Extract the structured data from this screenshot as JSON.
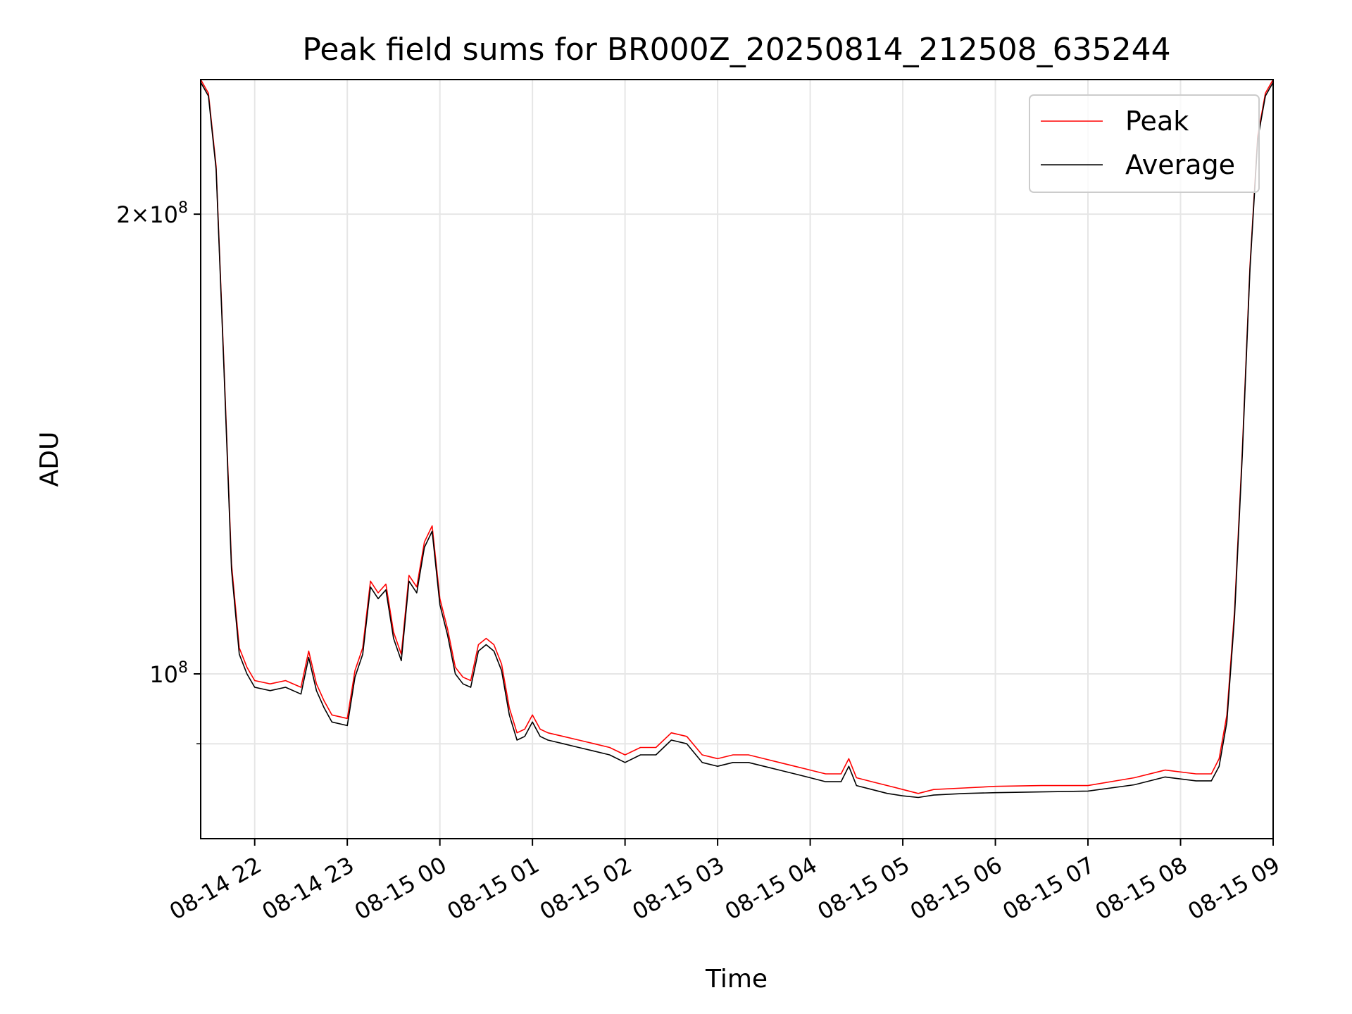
{
  "chart_data": {
    "type": "line",
    "title": "Peak field sums for BR000Z_20250814_212508_635244",
    "xlabel": "Time",
    "ylabel": "ADU",
    "y_scale": "log",
    "ylim": [
      78000000,
      245000000
    ],
    "xlim": [
      "2025-08-14 21:25",
      "2025-08-15 09:00"
    ],
    "x_ticks": [
      {
        "value": "2025-08-14 22:00",
        "label": "08-14 22"
      },
      {
        "value": "2025-08-14 23:00",
        "label": "08-14 23"
      },
      {
        "value": "2025-08-15 00:00",
        "label": "08-15 00"
      },
      {
        "value": "2025-08-15 01:00",
        "label": "08-15 01"
      },
      {
        "value": "2025-08-15 02:00",
        "label": "08-15 02"
      },
      {
        "value": "2025-08-15 03:00",
        "label": "08-15 03"
      },
      {
        "value": "2025-08-15 04:00",
        "label": "08-15 04"
      },
      {
        "value": "2025-08-15 05:00",
        "label": "08-15 05"
      },
      {
        "value": "2025-08-15 06:00",
        "label": "08-15 06"
      },
      {
        "value": "2025-08-15 07:00",
        "label": "08-15 07"
      },
      {
        "value": "2025-08-15 08:00",
        "label": "08-15 08"
      },
      {
        "value": "2025-08-15 09:00",
        "label": "08-15 09"
      }
    ],
    "y_ticks_major": [
      {
        "value": 100000000,
        "base": "10",
        "exp": "8",
        "mult": ""
      },
      {
        "value": 200000000,
        "base": "10",
        "exp": "8",
        "mult": "2×"
      }
    ],
    "y_ticks_minor": [
      90000000
    ],
    "grid": true,
    "legend": {
      "position": "top-right"
    },
    "series": [
      {
        "name": "Peak",
        "color": "#ff0000",
        "points": [
          [
            "2025-08-14 21:25",
            245000000
          ],
          [
            "2025-08-14 21:30",
            240000000
          ],
          [
            "2025-08-14 21:35",
            215000000
          ],
          [
            "2025-08-14 21:40",
            160000000
          ],
          [
            "2025-08-14 21:45",
            118000000
          ],
          [
            "2025-08-14 21:50",
            104000000
          ],
          [
            "2025-08-14 21:55",
            101000000
          ],
          [
            "2025-08-14 22:00",
            99000000
          ],
          [
            "2025-08-14 22:10",
            98500000
          ],
          [
            "2025-08-14 22:20",
            99000000
          ],
          [
            "2025-08-14 22:30",
            98000000
          ],
          [
            "2025-08-14 22:35",
            103500000
          ],
          [
            "2025-08-14 22:40",
            98500000
          ],
          [
            "2025-08-14 22:45",
            96000000
          ],
          [
            "2025-08-14 22:50",
            94000000
          ],
          [
            "2025-08-14 23:00",
            93500000
          ],
          [
            "2025-08-14 23:05",
            100500000
          ],
          [
            "2025-08-14 23:10",
            104000000
          ],
          [
            "2025-08-14 23:15",
            115000000
          ],
          [
            "2025-08-14 23:20",
            113000000
          ],
          [
            "2025-08-14 23:25",
            114500000
          ],
          [
            "2025-08-14 23:30",
            106500000
          ],
          [
            "2025-08-14 23:35",
            103000000
          ],
          [
            "2025-08-14 23:40",
            116000000
          ],
          [
            "2025-08-14 23:45",
            114000000
          ],
          [
            "2025-08-14 23:50",
            122000000
          ],
          [
            "2025-08-14 23:55",
            125000000
          ],
          [
            "2025-08-15 00:00",
            112000000
          ],
          [
            "2025-08-15 00:05",
            107000000
          ],
          [
            "2025-08-15 00:10",
            101000000
          ],
          [
            "2025-08-15 00:15",
            99500000
          ],
          [
            "2025-08-15 00:20",
            99000000
          ],
          [
            "2025-08-15 00:25",
            104500000
          ],
          [
            "2025-08-15 00:30",
            105500000
          ],
          [
            "2025-08-15 00:35",
            104500000
          ],
          [
            "2025-08-15 00:40",
            101500000
          ],
          [
            "2025-08-15 00:45",
            95000000
          ],
          [
            "2025-08-15 00:50",
            91500000
          ],
          [
            "2025-08-15 00:55",
            92000000
          ],
          [
            "2025-08-15 01:00",
            94000000
          ],
          [
            "2025-08-15 01:05",
            92000000
          ],
          [
            "2025-08-15 01:10",
            91500000
          ],
          [
            "2025-08-15 01:20",
            91000000
          ],
          [
            "2025-08-15 01:30",
            90500000
          ],
          [
            "2025-08-15 01:40",
            90000000
          ],
          [
            "2025-08-15 01:50",
            89500000
          ],
          [
            "2025-08-15 02:00",
            88500000
          ],
          [
            "2025-08-15 02:10",
            89500000
          ],
          [
            "2025-08-15 02:20",
            89500000
          ],
          [
            "2025-08-15 02:30",
            91500000
          ],
          [
            "2025-08-15 02:40",
            91000000
          ],
          [
            "2025-08-15 02:50",
            88500000
          ],
          [
            "2025-08-15 03:00",
            88000000
          ],
          [
            "2025-08-15 03:10",
            88500000
          ],
          [
            "2025-08-15 03:20",
            88500000
          ],
          [
            "2025-08-15 03:30",
            88000000
          ],
          [
            "2025-08-15 03:40",
            87500000
          ],
          [
            "2025-08-15 03:50",
            87000000
          ],
          [
            "2025-08-15 04:00",
            86500000
          ],
          [
            "2025-08-15 04:10",
            86000000
          ],
          [
            "2025-08-15 04:20",
            86000000
          ],
          [
            "2025-08-15 04:25",
            88000000
          ],
          [
            "2025-08-15 04:30",
            85500000
          ],
          [
            "2025-08-15 04:40",
            85000000
          ],
          [
            "2025-08-15 04:50",
            84500000
          ],
          [
            "2025-08-15 05:00",
            84000000
          ],
          [
            "2025-08-15 05:10",
            83500000
          ],
          [
            "2025-08-15 05:20",
            84000000
          ],
          [
            "2025-08-15 05:40",
            84200000
          ],
          [
            "2025-08-15 06:00",
            84400000
          ],
          [
            "2025-08-15 06:30",
            84500000
          ],
          [
            "2025-08-15 07:00",
            84500000
          ],
          [
            "2025-08-15 07:30",
            85500000
          ],
          [
            "2025-08-15 07:50",
            86500000
          ],
          [
            "2025-08-15 08:10",
            86000000
          ],
          [
            "2025-08-15 08:20",
            86000000
          ],
          [
            "2025-08-15 08:25",
            88000000
          ],
          [
            "2025-08-15 08:30",
            94000000
          ],
          [
            "2025-08-15 08:35",
            110000000
          ],
          [
            "2025-08-15 08:40",
            140000000
          ],
          [
            "2025-08-15 08:45",
            185000000
          ],
          [
            "2025-08-15 08:50",
            225000000
          ],
          [
            "2025-08-15 08:55",
            240000000
          ],
          [
            "2025-08-15 09:00",
            245000000
          ]
        ]
      },
      {
        "name": "Average",
        "color": "#000000",
        "points": [
          [
            "2025-08-14 21:25",
            244000000
          ],
          [
            "2025-08-14 21:30",
            239000000
          ],
          [
            "2025-08-14 21:35",
            214000000
          ],
          [
            "2025-08-14 21:40",
            159000000
          ],
          [
            "2025-08-14 21:45",
            117000000
          ],
          [
            "2025-08-14 21:50",
            103000000
          ],
          [
            "2025-08-14 21:55",
            100000000
          ],
          [
            "2025-08-14 22:00",
            98000000
          ],
          [
            "2025-08-14 22:10",
            97500000
          ],
          [
            "2025-08-14 22:20",
            98000000
          ],
          [
            "2025-08-14 22:30",
            97000000
          ],
          [
            "2025-08-14 22:35",
            102500000
          ],
          [
            "2025-08-14 22:40",
            97500000
          ],
          [
            "2025-08-14 22:45",
            95000000
          ],
          [
            "2025-08-14 22:50",
            93000000
          ],
          [
            "2025-08-14 23:00",
            92500000
          ],
          [
            "2025-08-14 23:05",
            99500000
          ],
          [
            "2025-08-14 23:10",
            103000000
          ],
          [
            "2025-08-14 23:15",
            114000000
          ],
          [
            "2025-08-14 23:20",
            112000000
          ],
          [
            "2025-08-14 23:25",
            113500000
          ],
          [
            "2025-08-14 23:30",
            105500000
          ],
          [
            "2025-08-14 23:35",
            102000000
          ],
          [
            "2025-08-14 23:40",
            115000000
          ],
          [
            "2025-08-14 23:45",
            113000000
          ],
          [
            "2025-08-14 23:50",
            121000000
          ],
          [
            "2025-08-14 23:55",
            124000000
          ],
          [
            "2025-08-15 00:00",
            111000000
          ],
          [
            "2025-08-15 00:05",
            106000000
          ],
          [
            "2025-08-15 00:10",
            100000000
          ],
          [
            "2025-08-15 00:15",
            98500000
          ],
          [
            "2025-08-15 00:20",
            98000000
          ],
          [
            "2025-08-15 00:25",
            103500000
          ],
          [
            "2025-08-15 00:30",
            104500000
          ],
          [
            "2025-08-15 00:35",
            103500000
          ],
          [
            "2025-08-15 00:40",
            100500000
          ],
          [
            "2025-08-15 00:45",
            94000000
          ],
          [
            "2025-08-15 00:50",
            90500000
          ],
          [
            "2025-08-15 00:55",
            91000000
          ],
          [
            "2025-08-15 01:00",
            93000000
          ],
          [
            "2025-08-15 01:05",
            91000000
          ],
          [
            "2025-08-15 01:10",
            90500000
          ],
          [
            "2025-08-15 01:20",
            90000000
          ],
          [
            "2025-08-15 01:30",
            89500000
          ],
          [
            "2025-08-15 01:40",
            89000000
          ],
          [
            "2025-08-15 01:50",
            88500000
          ],
          [
            "2025-08-15 02:00",
            87500000
          ],
          [
            "2025-08-15 02:10",
            88500000
          ],
          [
            "2025-08-15 02:20",
            88500000
          ],
          [
            "2025-08-15 02:30",
            90500000
          ],
          [
            "2025-08-15 02:40",
            90000000
          ],
          [
            "2025-08-15 02:50",
            87500000
          ],
          [
            "2025-08-15 03:00",
            87000000
          ],
          [
            "2025-08-15 03:10",
            87500000
          ],
          [
            "2025-08-15 03:20",
            87500000
          ],
          [
            "2025-08-15 03:30",
            87000000
          ],
          [
            "2025-08-15 03:40",
            86500000
          ],
          [
            "2025-08-15 03:50",
            86000000
          ],
          [
            "2025-08-15 04:00",
            85500000
          ],
          [
            "2025-08-15 04:10",
            85000000
          ],
          [
            "2025-08-15 04:20",
            85000000
          ],
          [
            "2025-08-15 04:25",
            87000000
          ],
          [
            "2025-08-15 04:30",
            84500000
          ],
          [
            "2025-08-15 04:40",
            84000000
          ],
          [
            "2025-08-15 04:50",
            83500000
          ],
          [
            "2025-08-15 05:00",
            83200000
          ],
          [
            "2025-08-15 05:10",
            83000000
          ],
          [
            "2025-08-15 05:20",
            83300000
          ],
          [
            "2025-08-15 05:40",
            83500000
          ],
          [
            "2025-08-15 06:00",
            83600000
          ],
          [
            "2025-08-15 06:30",
            83700000
          ],
          [
            "2025-08-15 07:00",
            83800000
          ],
          [
            "2025-08-15 07:30",
            84600000
          ],
          [
            "2025-08-15 07:50",
            85600000
          ],
          [
            "2025-08-15 08:10",
            85100000
          ],
          [
            "2025-08-15 08:20",
            85100000
          ],
          [
            "2025-08-15 08:25",
            87000000
          ],
          [
            "2025-08-15 08:30",
            93000000
          ],
          [
            "2025-08-15 08:35",
            109000000
          ],
          [
            "2025-08-15 08:40",
            139000000
          ],
          [
            "2025-08-15 08:45",
            184000000
          ],
          [
            "2025-08-15 08:50",
            224000000
          ],
          [
            "2025-08-15 08:55",
            239000000
          ],
          [
            "2025-08-15 09:00",
            244000000
          ]
        ]
      }
    ]
  }
}
